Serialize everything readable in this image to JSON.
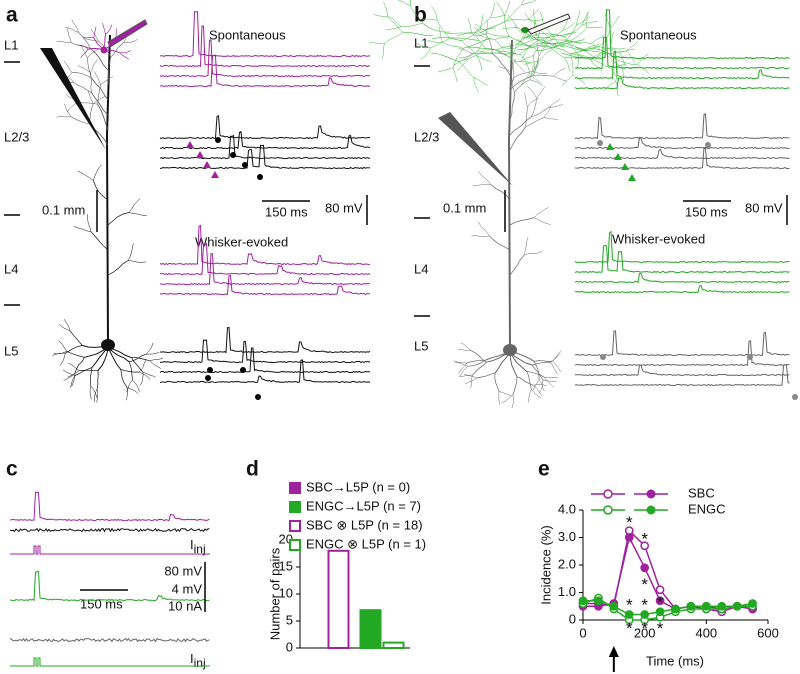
{
  "panel_a": {
    "label": "a",
    "layers": [
      "L1",
      "L2/3",
      "L4",
      "L5"
    ],
    "spontaneous": "Spontaneous",
    "whisker_evoked": "Whisker-evoked",
    "scale_mm": "0.1 mm",
    "scale_ms": "150 ms",
    "scale_mv": "80 mV"
  },
  "panel_b": {
    "label": "b",
    "layers": [
      "L1",
      "L2/3",
      "L4",
      "L5"
    ],
    "spontaneous": "Spontaneous",
    "whisker_evoked": "Whisker-evoked",
    "scale_mm": "0.1 mm",
    "scale_ms": "150 ms",
    "scale_mv": "80 mV"
  },
  "panel_c": {
    "label": "c",
    "scale_mv": "80 mV",
    "scale_small_mv": "4 mV",
    "scale_na": "10 nA",
    "scale_ms": "150 ms",
    "current_labels": [
      {
        "symbol": "I",
        "sub": "inj"
      },
      {
        "symbol": "I",
        "sub": "inj"
      }
    ]
  },
  "chart_data": [
    {
      "type": "bar",
      "panel_label": "d",
      "ylabel": "Number of pairs",
      "categories": [
        null,
        null
      ],
      "ylim": [
        0,
        20
      ],
      "yticks": [
        0,
        5,
        10,
        15,
        20
      ],
      "series": [
        {
          "name": "SBC→L5P (n = 0)",
          "color": "#a0229f",
          "filled": true,
          "values": [
            0,
            null
          ]
        },
        {
          "name": "ENGC→L5P (n = 7)",
          "color": "#22a822",
          "filled": true,
          "values": [
            null,
            7
          ]
        },
        {
          "name": "SBC ⊗ L5P (n = 18)",
          "color": "#a0229f",
          "filled": false,
          "values": [
            18,
            null
          ]
        },
        {
          "name": "ENGC ⊗ L5P (n = 1)",
          "color": "#22a822",
          "filled": false,
          "values": [
            null,
            1
          ]
        }
      ]
    },
    {
      "type": "line",
      "panel_label": "e",
      "xlabel": "Time (ms)",
      "ylabel": "Incidence (%)",
      "x": [
        0,
        50,
        100,
        150,
        200,
        250,
        300,
        350,
        400,
        450,
        500,
        550
      ],
      "xlim": [
        0,
        600
      ],
      "xticks": [
        0,
        200,
        400,
        600
      ],
      "ylim": [
        0,
        4
      ],
      "yticks": [
        0,
        {
          "value": 1,
          "label": "1.0"
        },
        {
          "value": 2,
          "label": "2.0"
        },
        {
          "value": 3,
          "label": "3.0"
        },
        {
          "value": 4,
          "label": "4.0"
        }
      ],
      "series": [
        {
          "name": "SBC",
          "color": "#a0229f",
          "values": [
            0.5,
            0.5,
            0.6,
            3.0,
            1.9,
            0.7,
            0.4,
            0.5,
            0.5,
            0.4,
            0.5,
            0.4
          ],
          "open_values": [
            0.6,
            0.6,
            0.5,
            3.25,
            2.7,
            1.1,
            0.4,
            0.5,
            0.4,
            0.3,
            0.5,
            0.4
          ]
        },
        {
          "name": "ENGC",
          "color": "#22a822",
          "values": [
            0.7,
            0.7,
            0.5,
            0.2,
            0.2,
            0.3,
            0.4,
            0.5,
            0.5,
            0.5,
            0.5,
            0.6
          ],
          "open_values": [
            0.6,
            0.8,
            0.4,
            0.0,
            0.0,
            0.1,
            0.3,
            0.4,
            0.4,
            0.4,
            0.5,
            0.5
          ]
        }
      ],
      "annotations": [
        {
          "text": "*",
          "x": 150,
          "y": 3.65,
          "color": "#a0229f"
        },
        {
          "text": "*",
          "x": 200,
          "y": 3.05,
          "color": "#a0229f"
        },
        {
          "text": "*",
          "x": 200,
          "y": 1.4,
          "color": "#a0229f"
        },
        {
          "text": "*",
          "x": 150,
          "y": 0.65,
          "color": "#22a822"
        },
        {
          "text": "*",
          "x": 200,
          "y": 0.65,
          "color": "#22a822"
        },
        {
          "text": "*",
          "x": 250,
          "y": 0.75,
          "color": "#22a822"
        },
        {
          "text": "*",
          "x": 150,
          "y": -0.2,
          "color": "#22a822"
        },
        {
          "text": "*",
          "x": 200,
          "y": -0.2,
          "color": "#22a822"
        },
        {
          "text": "*",
          "x": 250,
          "y": -0.2,
          "color": "#22a822"
        }
      ]
    }
  ]
}
